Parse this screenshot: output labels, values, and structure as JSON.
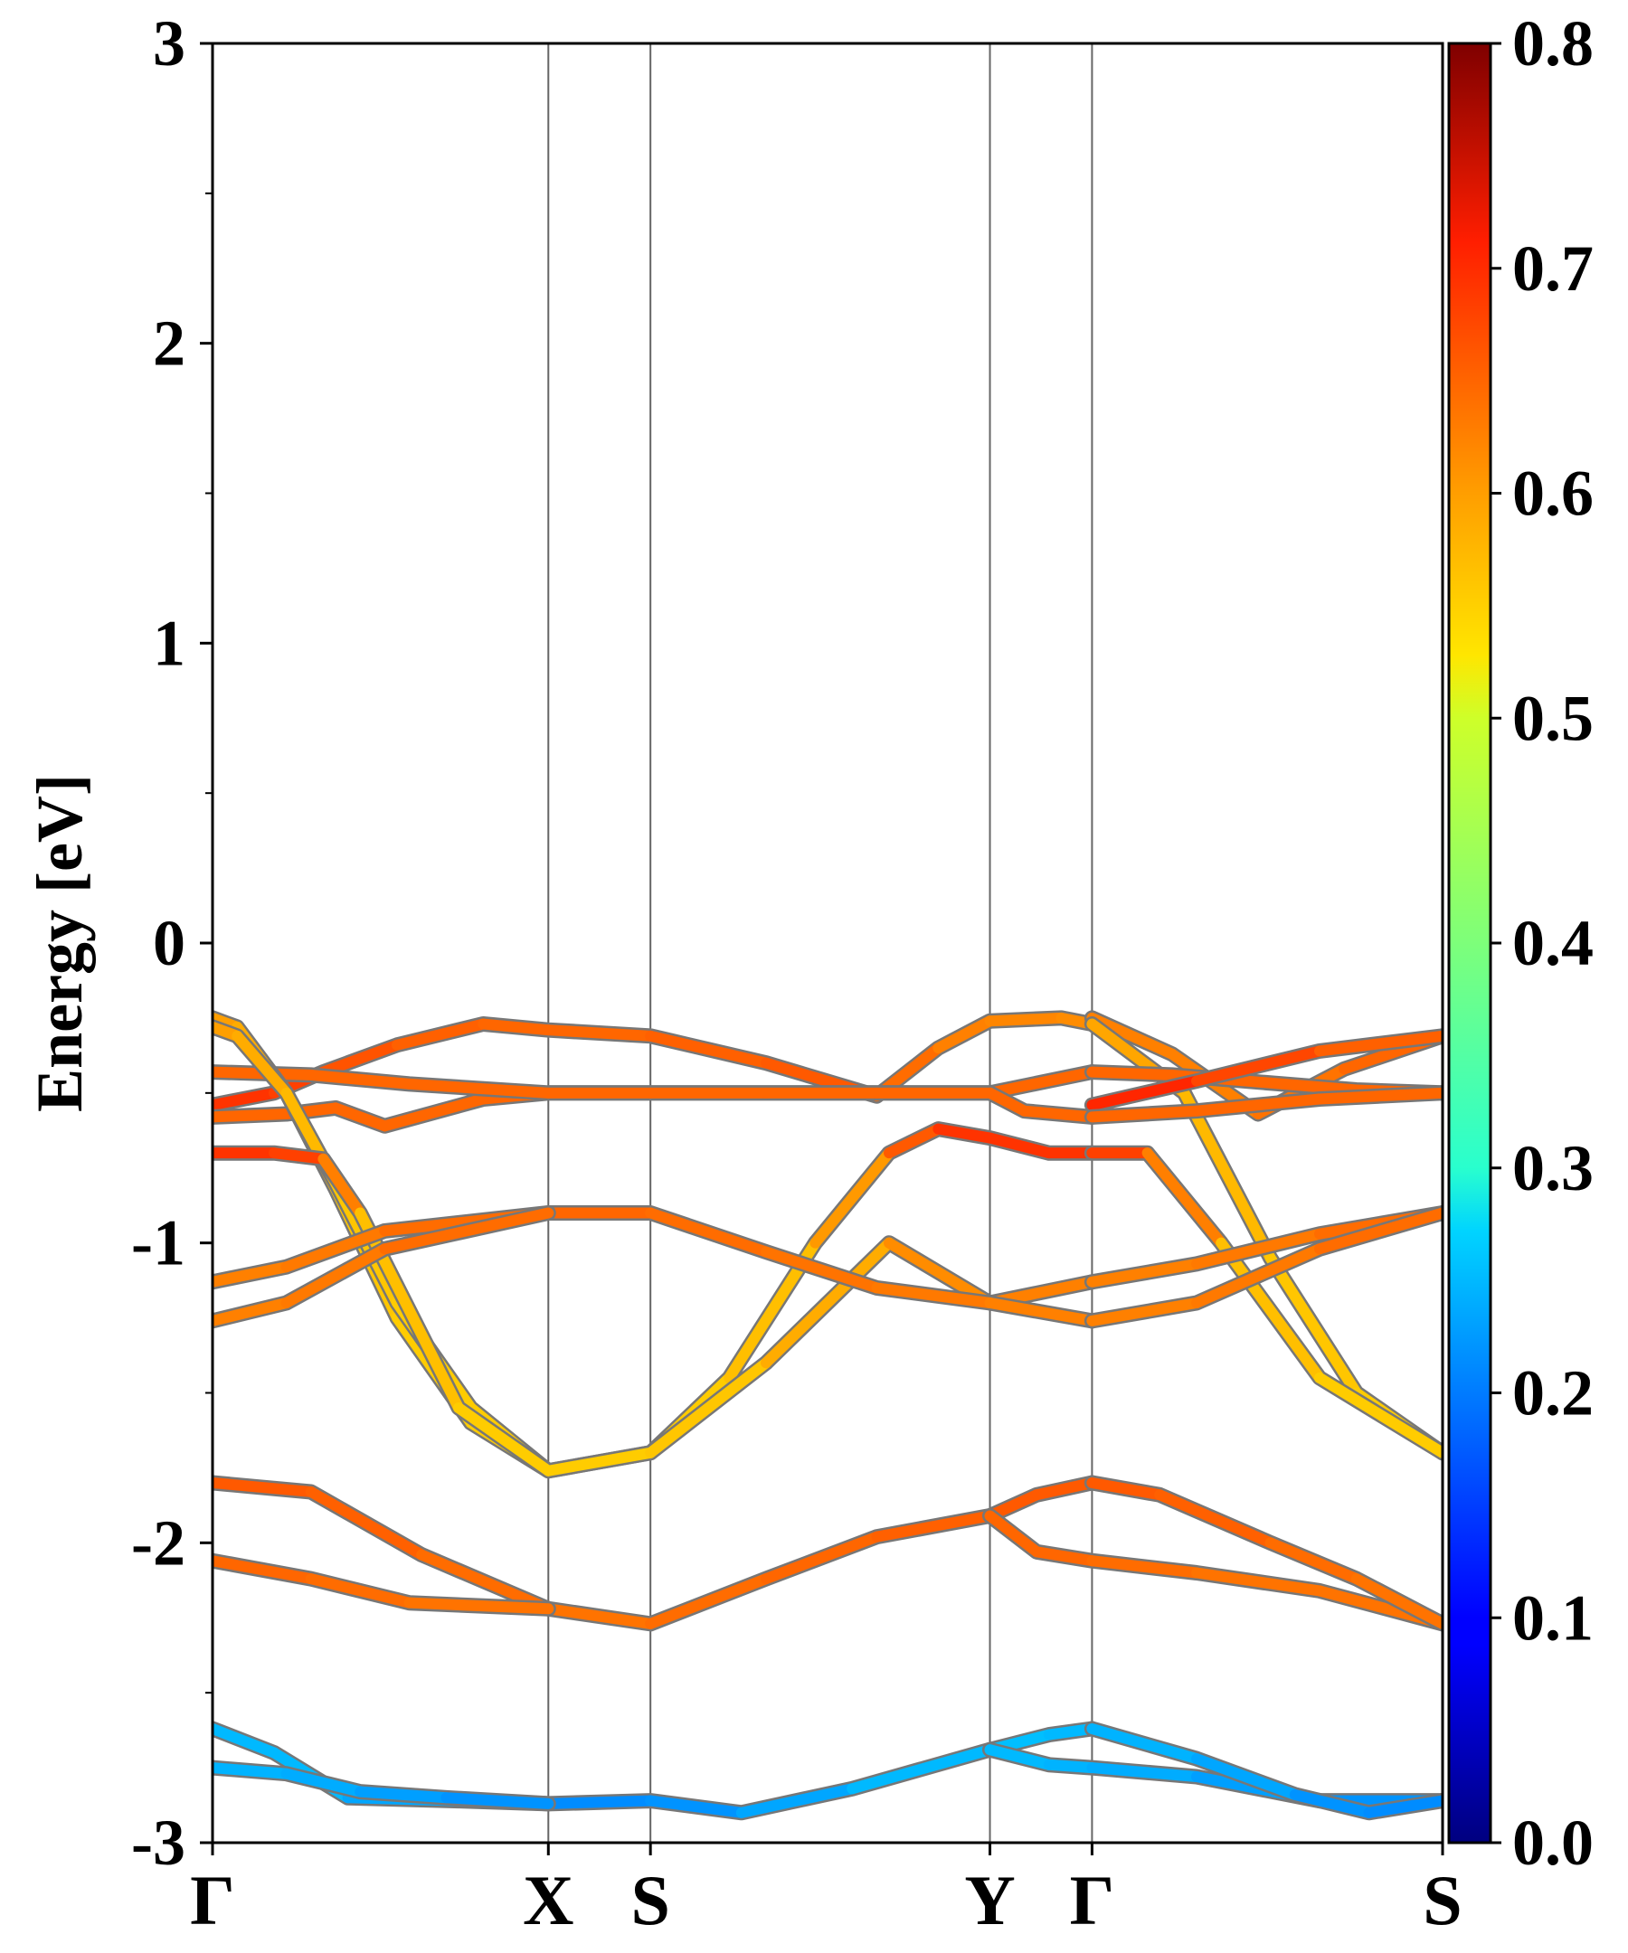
{
  "chart_data": {
    "type": "line",
    "title": "",
    "xlabel": "",
    "ylabel": "Energy [eV]",
    "ylim": [
      -3,
      3
    ],
    "yticks_major": [
      -3,
      -2,
      -1,
      0,
      1,
      2,
      3
    ],
    "yticks_minor": [
      -2.5,
      -1.5,
      -0.5,
      0.5,
      1.5,
      2.5
    ],
    "kpath": [
      {
        "label": "Γ",
        "k": 0.0
      },
      {
        "label": "X",
        "k": 0.273
      },
      {
        "label": "S",
        "k": 0.356
      },
      {
        "label": "Y",
        "k": 0.632
      },
      {
        "label": "Γ",
        "k": 0.715
      },
      {
        "label": "S",
        "k": 1.0
      }
    ],
    "colorbar": {
      "min": 0.0,
      "max": 0.8,
      "ticks": [
        "0.0",
        "0.1",
        "0.2",
        "0.3",
        "0.4",
        "0.5",
        "0.6",
        "0.7",
        "0.8"
      ],
      "colormap": "jet"
    },
    "grid": false,
    "series": [
      {
        "k": [
          0,
          0.05,
          0.09,
          0.15,
          0.22,
          0.273,
          0.356,
          0.45,
          0.54,
          0.59,
          0.632,
          0.69,
          0.715
        ],
        "energy": [
          -0.54,
          -0.5,
          -0.43,
          -0.34,
          -0.27,
          -0.29,
          -0.31,
          -0.4,
          -0.51,
          -0.35,
          -0.26,
          -0.25,
          -0.27
        ],
        "weight": [
          0.66,
          0.66,
          0.64,
          0.63,
          0.62,
          0.62,
          0.62,
          0.63,
          0.63,
          0.6,
          0.6,
          0.59,
          0.59
        ]
      },
      {
        "k": [
          0,
          0.06,
          0.1,
          0.14,
          0.22,
          0.273,
          0.356,
          0.45,
          0.54,
          0.632,
          0.715
        ],
        "energy": [
          -0.58,
          -0.57,
          -0.55,
          -0.61,
          -0.52,
          -0.5,
          -0.5,
          -0.5,
          -0.5,
          -0.5,
          -0.43
        ],
        "weight": [
          0.62,
          0.62,
          0.62,
          0.62,
          0.62,
          0.62,
          0.62,
          0.62,
          0.62,
          0.62,
          0.62
        ]
      },
      {
        "k": [
          0,
          0.08,
          0.16,
          0.273,
          0.356,
          0.45,
          0.54,
          0.632,
          0.66,
          0.715
        ],
        "energy": [
          -0.43,
          -0.44,
          -0.47,
          -0.5,
          -0.5,
          -0.5,
          -0.5,
          -0.5,
          -0.56,
          -0.58
        ],
        "weight": [
          0.62,
          0.62,
          0.62,
          0.62,
          0.62,
          0.62,
          0.62,
          0.62,
          0.62,
          0.62
        ]
      },
      {
        "k": [
          0,
          0.02,
          0.06,
          0.1,
          0.15,
          0.21,
          0.273,
          0.356,
          0.42,
          0.49,
          0.55,
          0.59,
          0.632,
          0.68,
          0.715
        ],
        "energy": [
          -0.25,
          -0.28,
          -0.5,
          -0.82,
          -1.25,
          -1.6,
          -1.76,
          -1.7,
          -1.45,
          -1.0,
          -0.7,
          -0.62,
          -0.65,
          -0.7,
          -0.7
        ],
        "weight": [
          0.58,
          0.57,
          0.56,
          0.55,
          0.54,
          0.54,
          0.54,
          0.54,
          0.54,
          0.56,
          0.6,
          0.66,
          0.66,
          0.66,
          0.66
        ]
      },
      {
        "k": [
          0,
          0.02,
          0.06,
          0.1,
          0.15,
          0.21,
          0.273
        ],
        "energy": [
          -0.28,
          -0.31,
          -0.5,
          -0.8,
          -1.2,
          -1.55,
          -1.76
        ],
        "weight": [
          0.58,
          0.57,
          0.56,
          0.55,
          0.54,
          0.54,
          0.54
        ]
      },
      {
        "k": [
          0,
          0.05,
          0.09,
          0.12,
          0.2,
          0.273,
          0.356,
          0.45,
          0.55,
          0.632,
          0.715
        ],
        "energy": [
          -0.7,
          -0.7,
          -0.72,
          -0.9,
          -1.55,
          -1.76,
          -1.7,
          -1.4,
          -1.0,
          -1.2,
          -1.13
        ],
        "weight": [
          0.66,
          0.66,
          0.64,
          0.56,
          0.54,
          0.54,
          0.54,
          0.55,
          0.58,
          0.6,
          0.6
        ]
      },
      {
        "k": [
          0,
          0.06,
          0.14,
          0.273,
          0.356,
          0.45,
          0.54,
          0.632,
          0.715
        ],
        "energy": [
          -1.13,
          -1.08,
          -0.96,
          -0.9,
          -0.9,
          -1.03,
          -1.15,
          -1.2,
          -1.26
        ],
        "weight": [
          0.6,
          0.6,
          0.61,
          0.62,
          0.62,
          0.61,
          0.61,
          0.6,
          0.6
        ]
      },
      {
        "k": [
          0,
          0.06,
          0.14,
          0.273
        ],
        "energy": [
          -1.26,
          -1.2,
          -1.02,
          -0.9
        ],
        "weight": [
          0.6,
          0.6,
          0.61,
          0.62
        ]
      },
      {
        "k": [
          0,
          0.08,
          0.17,
          0.273,
          0.356,
          0.45,
          0.54,
          0.632,
          0.67,
          0.715
        ],
        "energy": [
          -1.8,
          -1.83,
          -2.04,
          -2.22,
          -2.27,
          -2.12,
          -1.98,
          -1.91,
          -1.84,
          -1.8
        ],
        "weight": [
          0.63,
          0.63,
          0.62,
          0.61,
          0.61,
          0.62,
          0.62,
          0.63,
          0.63,
          0.63
        ]
      },
      {
        "k": [
          0,
          0.08,
          0.16,
          0.273
        ],
        "energy": [
          -2.06,
          -2.12,
          -2.2,
          -2.22
        ],
        "weight": [
          0.62,
          0.62,
          0.61,
          0.61
        ]
      },
      {
        "k": [
          0.632,
          0.67,
          0.715,
          0.8,
          0.9,
          1.0
        ],
        "energy": [
          -1.91,
          -2.03,
          -2.06,
          -2.1,
          -2.16,
          -2.27
        ],
        "weight": [
          0.62,
          0.62,
          0.62,
          0.61,
          0.61,
          0.61
        ]
      },
      {
        "k": [
          0.715,
          0.77,
          0.86,
          0.93,
          1.0
        ],
        "energy": [
          -1.8,
          -1.84,
          -2.0,
          -2.12,
          -2.27
        ],
        "weight": [
          0.63,
          0.63,
          0.62,
          0.61,
          0.61
        ]
      },
      {
        "k": [
          0,
          0.05,
          0.11,
          0.2,
          0.273,
          0.356,
          0.43,
          0.52,
          0.632,
          0.68,
          0.715
        ],
        "energy": [
          -2.62,
          -2.7,
          -2.85,
          -2.86,
          -2.87,
          -2.86,
          -2.9,
          -2.82,
          -2.69,
          -2.64,
          -2.62
        ],
        "weight": [
          0.24,
          0.25,
          0.24,
          0.22,
          0.21,
          0.21,
          0.22,
          0.24,
          0.25,
          0.25,
          0.24
        ]
      },
      {
        "k": [
          0,
          0.06,
          0.12,
          0.19,
          0.273
        ],
        "energy": [
          -2.75,
          -2.77,
          -2.83,
          -2.85,
          -2.87
        ],
        "weight": [
          0.24,
          0.24,
          0.23,
          0.22,
          0.21
        ]
      },
      {
        "k": [
          0.632,
          0.68,
          0.715,
          0.8,
          0.9,
          1.0
        ],
        "energy": [
          -2.69,
          -2.74,
          -2.75,
          -2.78,
          -2.86,
          -2.86
        ],
        "weight": [
          0.25,
          0.24,
          0.24,
          0.23,
          0.22,
          0.21
        ]
      },
      {
        "k": [
          0.715,
          0.8,
          0.88,
          0.94,
          1.0
        ],
        "energy": [
          -2.62,
          -2.72,
          -2.84,
          -2.9,
          -2.86
        ],
        "weight": [
          0.24,
          0.24,
          0.22,
          0.21,
          0.21
        ]
      },
      {
        "k": [
          0.715,
          0.78,
          0.85,
          0.92,
          1.0
        ],
        "energy": [
          -0.25,
          -0.37,
          -0.57,
          -0.42,
          -0.31
        ],
        "weight": [
          0.6,
          0.6,
          0.6,
          0.62,
          0.62
        ]
      },
      {
        "k": [
          0.715,
          0.79,
          0.86,
          0.93,
          1.0
        ],
        "energy": [
          -0.27,
          -0.5,
          -1.05,
          -1.5,
          -1.7
        ],
        "weight": [
          0.58,
          0.56,
          0.55,
          0.54,
          0.54
        ]
      },
      {
        "k": [
          0.715,
          0.78,
          0.87,
          0.93,
          1.0
        ],
        "energy": [
          -0.43,
          -0.44,
          -0.47,
          -0.49,
          -0.5
        ],
        "weight": [
          0.62,
          0.62,
          0.62,
          0.62,
          0.62
        ]
      },
      {
        "k": [
          0.715,
          0.8,
          0.9,
          1.0
        ],
        "energy": [
          -0.54,
          -0.46,
          -0.36,
          -0.31
        ],
        "weight": [
          0.68,
          0.66,
          0.63,
          0.62
        ]
      },
      {
        "k": [
          0.715,
          0.8,
          0.9,
          1.0
        ],
        "energy": [
          -0.58,
          -0.56,
          -0.52,
          -0.5
        ],
        "weight": [
          0.62,
          0.62,
          0.62,
          0.62
        ]
      },
      {
        "k": [
          0.715,
          0.76,
          0.82,
          0.9,
          1.0
        ],
        "energy": [
          -0.7,
          -0.7,
          -1.0,
          -1.45,
          -1.7
        ],
        "weight": [
          0.66,
          0.64,
          0.56,
          0.54,
          0.54
        ]
      },
      {
        "k": [
          0.715,
          0.8,
          0.9,
          1.0
        ],
        "energy": [
          -1.13,
          -1.07,
          -0.97,
          -0.9
        ],
        "weight": [
          0.6,
          0.6,
          0.61,
          0.62
        ]
      },
      {
        "k": [
          0.715,
          0.8,
          0.9,
          1.0
        ],
        "energy": [
          -1.26,
          -1.2,
          -1.02,
          -0.9
        ],
        "weight": [
          0.6,
          0.6,
          0.61,
          0.62
        ]
      }
    ]
  }
}
